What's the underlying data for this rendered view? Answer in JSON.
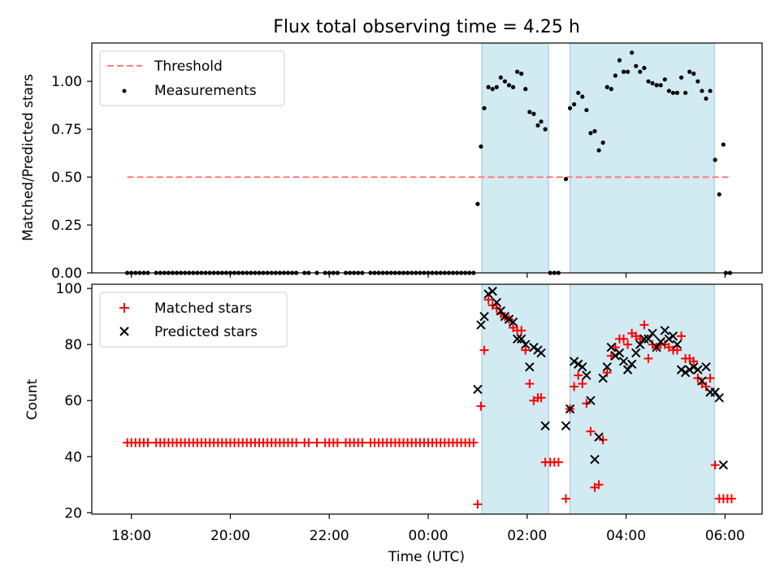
{
  "chart_data": {
    "type": "scatter",
    "title": "Flux total observing time = 4.25 h",
    "xlabel": "Time (UTC)",
    "x_unit": "hours",
    "xlim": [
      -6.8,
      6.75
    ],
    "x_ticks": [
      {
        "value": -6,
        "label": "18:00"
      },
      {
        "value": -4,
        "label": "20:00"
      },
      {
        "value": -2,
        "label": "22:00"
      },
      {
        "value": 0,
        "label": "00:00"
      },
      {
        "value": 2,
        "label": "02:00"
      },
      {
        "value": 4,
        "label": "04:00"
      },
      {
        "value": 6,
        "label": "06:00"
      }
    ],
    "shaded_intervals": [
      {
        "start": "01:05",
        "end": "02:26",
        "color": "#add8e6"
      },
      {
        "start": "02:52",
        "end": "05:47",
        "color": "#add8e6"
      }
    ],
    "panels": [
      {
        "ylabel": "Matched/Predicted stars",
        "ylim": [
          0,
          1.2
        ],
        "y_ticks": [
          "0.00",
          "0.25",
          "0.50",
          "0.75",
          "1.00"
        ],
        "legend": {
          "position": "top-left",
          "entries": [
            "Threshold",
            "Measurements"
          ]
        },
        "threshold": {
          "name": "Threshold",
          "value": 0.5,
          "x_start": "17:55",
          "x_end": "06:07",
          "color": "#ff7f7f",
          "style": "dashed"
        },
        "measurements": {
          "name": "Measurements",
          "color": "#000000",
          "zero_times": [
            "17:55",
            "18:00",
            "18:05",
            "18:10",
            "18:15",
            "18:20",
            "18:30",
            "18:35",
            "18:40",
            "18:45",
            "18:50",
            "18:55",
            "19:00",
            "19:05",
            "19:10",
            "19:15",
            "19:20",
            "19:25",
            "19:30",
            "19:35",
            "19:40",
            "19:45",
            "19:50",
            "19:55",
            "20:00",
            "20:05",
            "20:10",
            "20:15",
            "20:20",
            "20:25",
            "20:30",
            "20:35",
            "20:40",
            "20:45",
            "20:50",
            "20:55",
            "21:00",
            "21:05",
            "21:10",
            "21:15",
            "21:20",
            "21:30",
            "21:35",
            "21:45",
            "21:55",
            "22:00",
            "22:05",
            "22:10",
            "22:20",
            "22:25",
            "22:30",
            "22:35",
            "22:40",
            "22:50",
            "22:55",
            "23:00",
            "23:05",
            "23:10",
            "23:15",
            "23:20",
            "23:25",
            "23:30",
            "23:35",
            "23:40",
            "23:45",
            "23:50",
            "23:55",
            "00:00",
            "00:05",
            "00:10",
            "00:15",
            "00:20",
            "00:25",
            "00:30",
            "00:35",
            "00:40",
            "00:45",
            "00:50",
            "00:55",
            "02:28",
            "02:33",
            "02:38",
            "06:01",
            "06:06"
          ],
          "points": [
            [
              "01:00",
              0.36
            ],
            [
              "01:04",
              0.66
            ],
            [
              "01:08",
              0.86
            ],
            [
              "01:13",
              0.97
            ],
            [
              "01:18",
              0.96
            ],
            [
              "01:23",
              0.97
            ],
            [
              "01:28",
              1.02
            ],
            [
              "01:33",
              1.0
            ],
            [
              "01:38",
              0.98
            ],
            [
              "01:43",
              0.97
            ],
            [
              "01:48",
              1.05
            ],
            [
              "01:53",
              1.04
            ],
            [
              "01:58",
              0.96
            ],
            [
              "02:03",
              0.84
            ],
            [
              "02:08",
              0.83
            ],
            [
              "02:13",
              0.77
            ],
            [
              "02:17",
              0.79
            ],
            [
              "02:22",
              0.75
            ],
            [
              "02:47",
              0.49
            ],
            [
              "02:52",
              0.86
            ],
            [
              "02:57",
              0.88
            ],
            [
              "03:02",
              0.94
            ],
            [
              "03:07",
              0.92
            ],
            [
              "03:12",
              0.85
            ],
            [
              "03:17",
              0.73
            ],
            [
              "03:22",
              0.74
            ],
            [
              "03:27",
              0.64
            ],
            [
              "03:32",
              0.68
            ],
            [
              "03:37",
              0.97
            ],
            [
              "03:42",
              0.96
            ],
            [
              "03:47",
              1.03
            ],
            [
              "03:52",
              1.11
            ],
            [
              "03:57",
              1.05
            ],
            [
              "04:02",
              1.05
            ],
            [
              "04:07",
              1.15
            ],
            [
              "04:12",
              1.08
            ],
            [
              "04:17",
              1.05
            ],
            [
              "04:22",
              1.07
            ],
            [
              "04:27",
              1.0
            ],
            [
              "04:32",
              0.99
            ],
            [
              "04:37",
              0.98
            ],
            [
              "04:42",
              0.98
            ],
            [
              "04:47",
              1.01
            ],
            [
              "04:52",
              0.95
            ],
            [
              "04:57",
              0.94
            ],
            [
              "05:02",
              0.94
            ],
            [
              "05:07",
              1.02
            ],
            [
              "05:12",
              0.94
            ],
            [
              "05:17",
              1.05
            ],
            [
              "05:22",
              1.04
            ],
            [
              "05:27",
              1.0
            ],
            [
              "05:32",
              0.95
            ],
            [
              "05:37",
              0.91
            ],
            [
              "05:42",
              0.95
            ],
            [
              "05:48",
              0.59
            ],
            [
              "05:53",
              0.41
            ],
            [
              "05:58",
              0.67
            ]
          ]
        }
      },
      {
        "ylabel": "Count",
        "ylim": [
          19.5,
          101.5
        ],
        "y_ticks": [
          "20",
          "40",
          "60",
          "80",
          "100"
        ],
        "legend": {
          "position": "top-left",
          "entries": [
            "Matched stars",
            "Predicted stars"
          ]
        },
        "matched": {
          "name": "Matched stars",
          "color": "#ff0000",
          "marker": "+",
          "constant_value": 45,
          "constant_times": [
            "17:55",
            "18:00",
            "18:05",
            "18:10",
            "18:15",
            "18:20",
            "18:30",
            "18:35",
            "18:40",
            "18:45",
            "18:50",
            "18:55",
            "19:00",
            "19:05",
            "19:10",
            "19:15",
            "19:20",
            "19:25",
            "19:30",
            "19:35",
            "19:40",
            "19:45",
            "19:50",
            "19:55",
            "20:00",
            "20:05",
            "20:10",
            "20:15",
            "20:20",
            "20:25",
            "20:30",
            "20:35",
            "20:40",
            "20:45",
            "20:50",
            "20:55",
            "21:00",
            "21:05",
            "21:10",
            "21:15",
            "21:20",
            "21:30",
            "21:35",
            "21:45",
            "21:55",
            "22:00",
            "22:05",
            "22:10",
            "22:20",
            "22:25",
            "22:30",
            "22:35",
            "22:40",
            "22:50",
            "22:55",
            "23:00",
            "23:05",
            "23:10",
            "23:15",
            "23:20",
            "23:25",
            "23:30",
            "23:35",
            "23:40",
            "23:45",
            "23:50",
            "23:55",
            "00:00",
            "00:05",
            "00:10",
            "00:15",
            "00:20",
            "00:25",
            "00:30",
            "00:35",
            "00:40",
            "00:45",
            "00:50",
            "00:55"
          ],
          "points": [
            [
              "01:00",
              23
            ],
            [
              "01:04",
              58
            ],
            [
              "01:08",
              78
            ],
            [
              "01:13",
              96
            ],
            [
              "01:18",
              94
            ],
            [
              "01:23",
              93
            ],
            [
              "01:28",
              91
            ],
            [
              "01:33",
              90
            ],
            [
              "01:38",
              89
            ],
            [
              "01:43",
              86
            ],
            [
              "01:48",
              85
            ],
            [
              "01:53",
              85
            ],
            [
              "01:58",
              78
            ],
            [
              "02:03",
              66
            ],
            [
              "02:08",
              60
            ],
            [
              "02:13",
              61
            ],
            [
              "02:17",
              61
            ],
            [
              "02:22",
              38
            ],
            [
              "02:28",
              38
            ],
            [
              "02:33",
              38
            ],
            [
              "02:38",
              38
            ],
            [
              "02:47",
              25
            ],
            [
              "02:52",
              57
            ],
            [
              "02:57",
              65
            ],
            [
              "03:02",
              69
            ],
            [
              "03:07",
              66
            ],
            [
              "03:12",
              59
            ],
            [
              "03:17",
              49
            ],
            [
              "03:22",
              29
            ],
            [
              "03:27",
              30
            ],
            [
              "03:32",
              46
            ],
            [
              "03:37",
              70
            ],
            [
              "03:42",
              76
            ],
            [
              "03:47",
              79
            ],
            [
              "03:52",
              82
            ],
            [
              "03:57",
              82
            ],
            [
              "04:02",
              80
            ],
            [
              "04:07",
              84
            ],
            [
              "04:12",
              83
            ],
            [
              "04:17",
              82
            ],
            [
              "04:22",
              87
            ],
            [
              "04:27",
              75
            ],
            [
              "04:32",
              80
            ],
            [
              "04:37",
              79
            ],
            [
              "04:42",
              80
            ],
            [
              "04:47",
              80
            ],
            [
              "04:52",
              79
            ],
            [
              "04:57",
              78
            ],
            [
              "05:02",
              78
            ],
            [
              "05:07",
              83
            ],
            [
              "05:12",
              75
            ],
            [
              "05:17",
              75
            ],
            [
              "05:22",
              74
            ],
            [
              "05:27",
              68
            ],
            [
              "05:32",
              66
            ],
            [
              "05:37",
              65
            ],
            [
              "05:42",
              68
            ],
            [
              "05:48",
              37
            ],
            [
              "05:53",
              25
            ],
            [
              "05:58",
              25
            ],
            [
              "06:03",
              25
            ],
            [
              "06:08",
              25
            ]
          ]
        },
        "predicted": {
          "name": "Predicted stars",
          "color": "#000000",
          "marker": "x",
          "points": [
            [
              "01:00",
              64
            ],
            [
              "01:04",
              87
            ],
            [
              "01:08",
              90
            ],
            [
              "01:13",
              98
            ],
            [
              "01:18",
              99
            ],
            [
              "01:23",
              95
            ],
            [
              "01:28",
              92
            ],
            [
              "01:33",
              90
            ],
            [
              "01:38",
              89
            ],
            [
              "01:43",
              88
            ],
            [
              "01:48",
              82
            ],
            [
              "01:53",
              82
            ],
            [
              "01:58",
              80
            ],
            [
              "02:03",
              72
            ],
            [
              "02:08",
              79
            ],
            [
              "02:13",
              78
            ],
            [
              "02:17",
              77
            ],
            [
              "02:22",
              51
            ],
            [
              "02:47",
              51
            ],
            [
              "02:52",
              57
            ],
            [
              "02:57",
              74
            ],
            [
              "03:02",
              73
            ],
            [
              "03:07",
              72
            ],
            [
              "03:12",
              69
            ],
            [
              "03:17",
              60
            ],
            [
              "03:22",
              39
            ],
            [
              "03:27",
              47
            ],
            [
              "03:32",
              68
            ],
            [
              "03:37",
              72
            ],
            [
              "03:42",
              79
            ],
            [
              "03:47",
              76
            ],
            [
              "03:52",
              77
            ],
            [
              "03:57",
              74
            ],
            [
              "04:02",
              71
            ],
            [
              "04:07",
              73
            ],
            [
              "04:12",
              77
            ],
            [
              "04:17",
              80
            ],
            [
              "04:22",
              82
            ],
            [
              "04:27",
              82
            ],
            [
              "04:32",
              84
            ],
            [
              "04:37",
              79
            ],
            [
              "04:42",
              81
            ],
            [
              "04:47",
              85
            ],
            [
              "04:52",
              82
            ],
            [
              "04:57",
              83
            ],
            [
              "05:02",
              80
            ],
            [
              "05:07",
              71
            ],
            [
              "05:12",
              70
            ],
            [
              "05:17",
              71
            ],
            [
              "05:22",
              72
            ],
            [
              "05:27",
              71
            ],
            [
              "05:32",
              67
            ],
            [
              "05:37",
              72
            ],
            [
              "05:42",
              63
            ],
            [
              "05:48",
              63
            ],
            [
              "05:53",
              61
            ],
            [
              "05:58",
              37
            ]
          ]
        }
      }
    ]
  }
}
